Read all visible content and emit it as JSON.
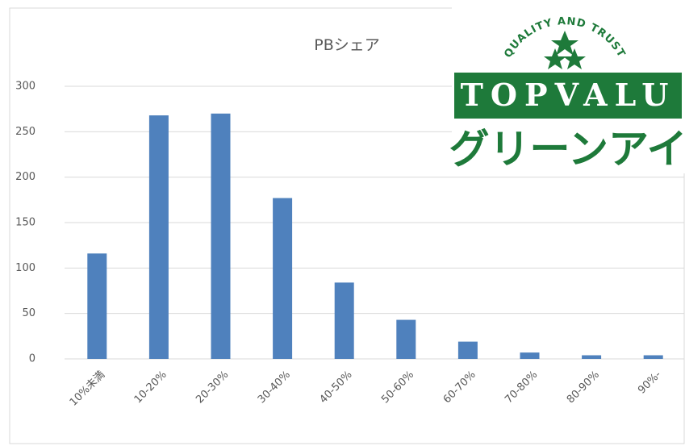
{
  "chart_data": {
    "type": "bar",
    "title": "PBシェア",
    "categories": [
      "10%未満",
      "10-20%",
      "20-30%",
      "30-40%",
      "40-50%",
      "50-60%",
      "60-70%",
      "70-80%",
      "80-90%",
      "90%-"
    ],
    "values": [
      116,
      268,
      270,
      177,
      84,
      43,
      19,
      7,
      4,
      4
    ],
    "color": "#4f81bd",
    "ylim": [
      0,
      300
    ],
    "yticks": [
      0,
      50,
      100,
      150,
      200,
      250,
      300
    ],
    "grid": true
  },
  "logo": {
    "tagline": "QUALITY AND TRUST",
    "brand": "TOPVALU",
    "subbrand": "グリーンアイ"
  }
}
